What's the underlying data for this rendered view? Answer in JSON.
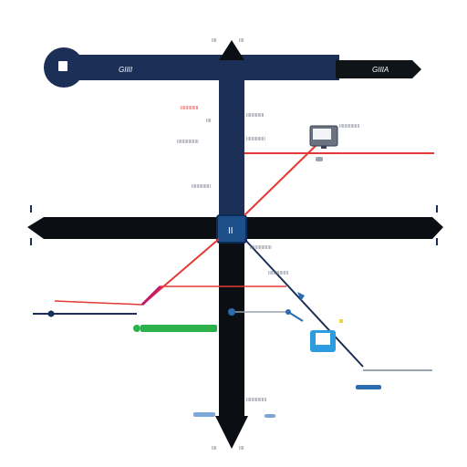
{
  "diagram": {
    "top_bar": {
      "left_label": "GIIII",
      "right_label": "GIIIA",
      "colors": {
        "bar": "#1c2f57",
        "tip": "#0f1419",
        "badge": "#1c2f57"
      }
    },
    "main_axis": {
      "color": "#0b0f14"
    },
    "center_node": {
      "label": "II",
      "color": "#1d4f8a"
    },
    "top_tick_labels": [
      "IIII",
      "IIII"
    ],
    "bottom_tick_labels": [
      "IIII",
      "IIII"
    ],
    "left_labels": [
      "IIIIIIIIIIIIII",
      "IIII",
      "IIIIIIIIIIIIIIIII",
      "IIIIIIIIIIIIIII"
    ],
    "right_labels": [
      "IIIIIIIIIIIIII",
      "IIIIIIIIIIIIIII",
      "IIIIIIIIIIIIIIIII",
      "IIIIIIIIIIIIIIII",
      "IIIIIIIIIIIIIIII",
      "IIIIIIIIIIIIIIII"
    ],
    "monitor_icon_label": "monitor-icon",
    "tablet_icon_label": "tablet-icon",
    "colors": {
      "red": "#e53935",
      "navy": "#1c2f57",
      "blue": "#2b6cb0",
      "green": "#2bb24c",
      "magenta": "#c2186b",
      "light_blue": "#2d9be0",
      "gray": "#9aa3b2"
    }
  }
}
